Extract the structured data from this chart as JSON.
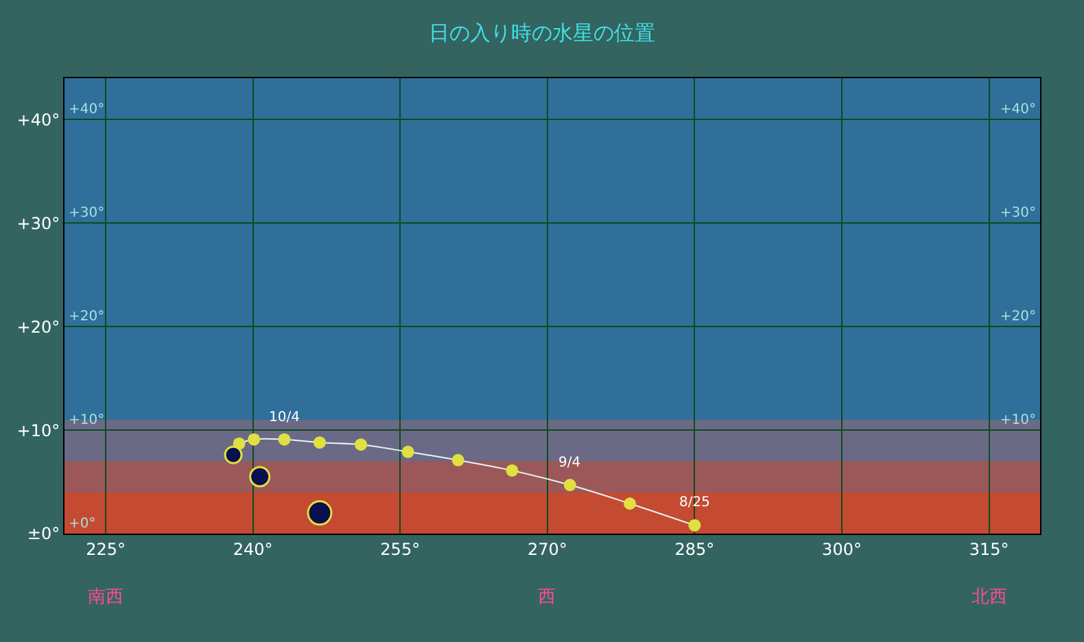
{
  "chart_data": {
    "type": "scatter",
    "title": "日の入り時の水星の位置",
    "xlim": [
      220.8,
      320.2
    ],
    "ylim": [
      0,
      44
    ],
    "xticks": [
      {
        "value": 225,
        "label": "225°"
      },
      {
        "value": 240,
        "label": "240°"
      },
      {
        "value": 255,
        "label": "255°"
      },
      {
        "value": 270,
        "label": "270°"
      },
      {
        "value": 285,
        "label": "285°"
      },
      {
        "value": 300,
        "label": "300°"
      },
      {
        "value": 315,
        "label": "315°"
      }
    ],
    "yticks": [
      {
        "value": 0,
        "label": "±0°"
      },
      {
        "value": 10,
        "label": "+10°"
      },
      {
        "value": 20,
        "label": "+20°"
      },
      {
        "value": 30,
        "label": "+30°"
      },
      {
        "value": 40,
        "label": "+40°"
      }
    ],
    "y2lim": [
      0,
      44
    ],
    "y2ticks": [
      {
        "value": 10,
        "label": "+10°"
      },
      {
        "value": 20,
        "label": "+20°"
      },
      {
        "value": 30,
        "label": "+30°"
      },
      {
        "value": 40,
        "label": "+40°"
      }
    ],
    "y3lim": [
      0,
      44
    ],
    "y3ticks": [
      {
        "value": 0,
        "label": "+0°"
      },
      {
        "value": 10,
        "label": "+10°"
      },
      {
        "value": 20,
        "label": "+20°"
      },
      {
        "value": 30,
        "label": "+30°"
      },
      {
        "value": 40,
        "label": "+40°"
      }
    ],
    "grid": true,
    "bands": [
      {
        "axis": "y",
        "from": 0,
        "to": 4,
        "color": "#c44a32"
      },
      {
        "axis": "y",
        "from": 4,
        "to": 7,
        "color": "#9c5858"
      },
      {
        "axis": "y",
        "from": 7,
        "to": 11,
        "color": "#6a6a86"
      }
    ],
    "series": [
      {
        "type": "line",
        "color": "#e0e040",
        "marker": "circle",
        "x": [
          285.0,
          278.4,
          272.3,
          266.4,
          260.9,
          255.8,
          251.0,
          246.8,
          243.2,
          240.1,
          238.6
        ],
        "values": [
          0.8,
          2.9,
          4.7,
          6.1,
          7.1,
          7.9,
          8.6,
          8.8,
          9.1,
          9.1,
          8.7
        ]
      },
      {
        "type": "scatter",
        "color": "#0a1050",
        "marker": "circle",
        "x": [
          238.0,
          240.7,
          246.8
        ],
        "values": [
          7.6,
          5.5,
          2.0
        ],
        "sizes": [
          0.5,
          0.68,
          1
        ]
      }
    ],
    "annotations": [
      {
        "text": "8/25",
        "x": 285.0,
        "y": 0.8
      },
      {
        "text": "9/4",
        "x": 272.3,
        "y": 4.7
      },
      {
        "text": "10/4",
        "x": 243.2,
        "y": 9.1
      },
      "南西",
      "西",
      "北西"
    ]
  }
}
